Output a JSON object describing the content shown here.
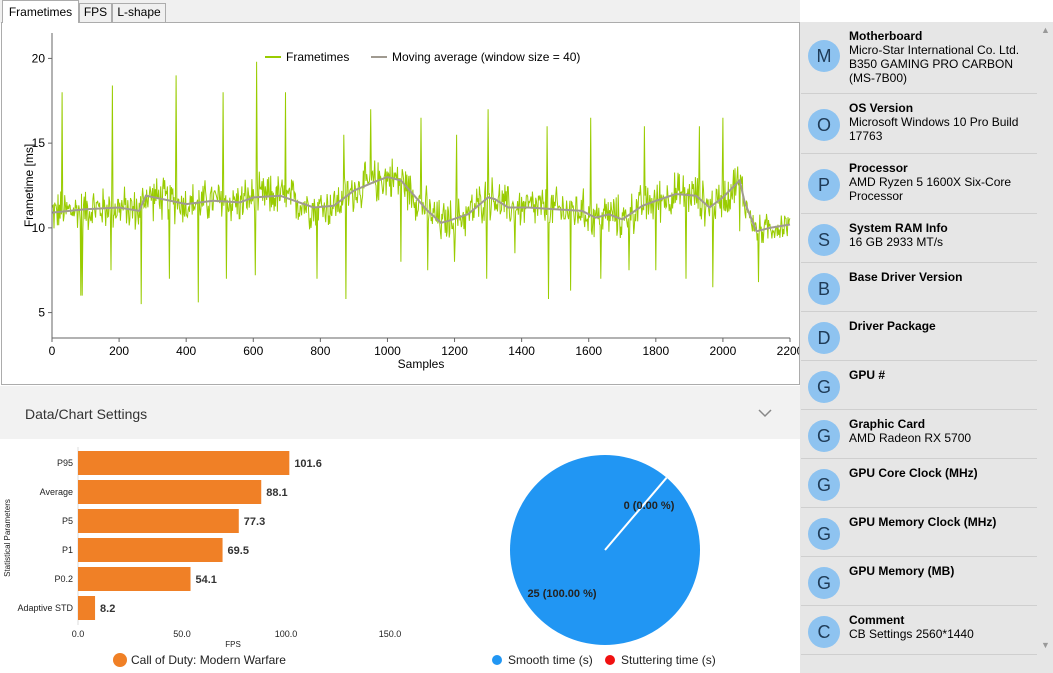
{
  "tabs": [
    {
      "label": "Frametimes",
      "active": true
    },
    {
      "label": "FPS",
      "active": false
    },
    {
      "label": "L-shape",
      "active": false
    }
  ],
  "frametimes_chart": {
    "type": "line",
    "xlabel": "Samples",
    "ylabel": "Frametime [ms]",
    "xlim": [
      0,
      2200
    ],
    "ylim": [
      3.5,
      21.5
    ],
    "x_ticks": [
      "0",
      "200",
      "400",
      "600",
      "800",
      "1000",
      "1200",
      "1400",
      "1600",
      "1800",
      "2000",
      "2200"
    ],
    "y_ticks": [
      "5",
      "10",
      "15",
      "20"
    ],
    "legend": {
      "position": "top-center",
      "entries": [
        "Frametimes",
        "Moving average (window size = 40)"
      ]
    },
    "colors": {
      "frametimes": "#99cc00",
      "moving_average": "#a09a90"
    },
    "moving_average": {
      "x": [
        0,
        100,
        200,
        260,
        280,
        400,
        480,
        560,
        600,
        680,
        780,
        840,
        900,
        960,
        1000,
        1040,
        1080,
        1120,
        1160,
        1180,
        1240,
        1300,
        1320,
        1360,
        1420,
        1500,
        1580,
        1620,
        1660,
        1700,
        1760,
        1800,
        1860,
        1920,
        1960,
        2000,
        2020,
        2050,
        2065,
        2100,
        2140,
        2200
      ],
      "y": [
        10.9,
        11.1,
        11.2,
        11.0,
        11.9,
        11.4,
        11.6,
        11.5,
        11.8,
        11.9,
        11.2,
        11.3,
        12.2,
        12.7,
        13.0,
        12.8,
        11.9,
        11.0,
        10.3,
        10.4,
        10.8,
        11.8,
        11.7,
        11.2,
        11.2,
        11.1,
        11.0,
        10.6,
        10.8,
        10.5,
        11.3,
        11.6,
        12.0,
        11.9,
        11.2,
        11.8,
        12.2,
        12.8,
        11.5,
        9.8,
        10.0,
        10.2
      ]
    },
    "spikes": [
      {
        "x": 30,
        "y": 18.0
      },
      {
        "x": 85,
        "y": 6.0
      },
      {
        "x": 180,
        "y": 18.4
      },
      {
        "x": 265,
        "y": 18.5
      },
      {
        "x": 370,
        "y": 19.0
      },
      {
        "x": 435,
        "y": 19.0
      },
      {
        "x": 510,
        "y": 18.0
      },
      {
        "x": 610,
        "y": 19.8
      },
      {
        "x": 695,
        "y": 18.0
      },
      {
        "x": 870,
        "y": 15.5
      },
      {
        "x": 950,
        "y": 17.0
      },
      {
        "x": 1100,
        "y": 16.5
      },
      {
        "x": 1205,
        "y": 15.5
      },
      {
        "x": 1300,
        "y": 17.0
      },
      {
        "x": 1475,
        "y": 16.0
      },
      {
        "x": 1605,
        "y": 16.5
      },
      {
        "x": 1765,
        "y": 16.0
      },
      {
        "x": 1930,
        "y": 16.0
      },
      {
        "x": 2000,
        "y": 16.5
      }
    ],
    "dips": [
      {
        "x": 90,
        "y": 6.0
      },
      {
        "x": 175,
        "y": 7.5
      },
      {
        "x": 265,
        "y": 5.5
      },
      {
        "x": 350,
        "y": 7.0
      },
      {
        "x": 435,
        "y": 5.6
      },
      {
        "x": 520,
        "y": 7.0
      },
      {
        "x": 605,
        "y": 7.2
      },
      {
        "x": 790,
        "y": 7.0
      },
      {
        "x": 875,
        "y": 5.8
      },
      {
        "x": 1040,
        "y": 8.0
      },
      {
        "x": 1120,
        "y": 7.5
      },
      {
        "x": 1200,
        "y": 8.0
      },
      {
        "x": 1295,
        "y": 7.0
      },
      {
        "x": 1380,
        "y": 8.5
      },
      {
        "x": 1480,
        "y": 5.8
      },
      {
        "x": 1545,
        "y": 6.3
      },
      {
        "x": 1635,
        "y": 7.0
      },
      {
        "x": 1720,
        "y": 7.5
      },
      {
        "x": 1800,
        "y": 7.5
      },
      {
        "x": 1890,
        "y": 7.0
      },
      {
        "x": 1970,
        "y": 6.5
      },
      {
        "x": 2050,
        "y": 9.8
      },
      {
        "x": 2105,
        "y": 6.8
      }
    ]
  },
  "settings": {
    "title": "Data/Chart Settings"
  },
  "stats_chart": {
    "type": "bar",
    "ylabel": "Statistical Parameters",
    "xlabel": "FPS",
    "xlim": [
      0,
      150
    ],
    "x_ticks": [
      "0.0",
      "50.0",
      "100.0",
      "150.0"
    ],
    "categories": [
      "P95",
      "Average",
      "P5",
      "P1",
      "P0.2",
      "Adaptive STD"
    ],
    "values": [
      101.6,
      88.1,
      77.3,
      69.5,
      54.1,
      8.2
    ],
    "value_labels": [
      "101.6",
      "88.1",
      "77.3",
      "69.5",
      "54.1",
      "8.2"
    ],
    "legend": "Call of Duty: Modern Warfare",
    "color": "#f08026"
  },
  "stutter_chart": {
    "type": "pie",
    "slices": [
      {
        "name": "Smooth time (s)",
        "value": 25,
        "label": "25 (100.00 %)",
        "color": "#2196f3"
      },
      {
        "name": "Stuttering time (s)",
        "value": 0,
        "label": "0 (0.00 %)",
        "color": "#f01010"
      }
    ]
  },
  "sidebar": {
    "items": [
      {
        "initial": "M",
        "title": "Motherboard",
        "lines": [
          "Micro-Star International Co. Ltd.",
          "B350 GAMING PRO CARBON",
          "(MS-7B00)"
        ]
      },
      {
        "initial": "O",
        "title": "OS Version",
        "lines": [
          "Microsoft Windows 10 Pro Build",
          "17763"
        ]
      },
      {
        "initial": "P",
        "title": "Processor",
        "lines": [
          "AMD Ryzen 5 1600X Six-Core",
          "Processor"
        ]
      },
      {
        "initial": "S",
        "title": "System RAM Info",
        "lines": [
          "16 GB 2933 MT/s"
        ]
      },
      {
        "initial": "B",
        "title": "Base Driver Version",
        "lines": []
      },
      {
        "initial": "D",
        "title": "Driver Package",
        "lines": []
      },
      {
        "initial": "G",
        "title": "GPU #",
        "lines": []
      },
      {
        "initial": "G",
        "title": "Graphic Card",
        "lines": [
          "AMD Radeon RX 5700"
        ]
      },
      {
        "initial": "G",
        "title": "GPU Core Clock (MHz)",
        "lines": []
      },
      {
        "initial": "G",
        "title": "GPU Memory Clock (MHz)",
        "lines": []
      },
      {
        "initial": "G",
        "title": "GPU Memory (MB)",
        "lines": []
      },
      {
        "initial": "C",
        "title": "Comment",
        "lines": [
          "CB Settings 2560*1440"
        ]
      }
    ]
  }
}
